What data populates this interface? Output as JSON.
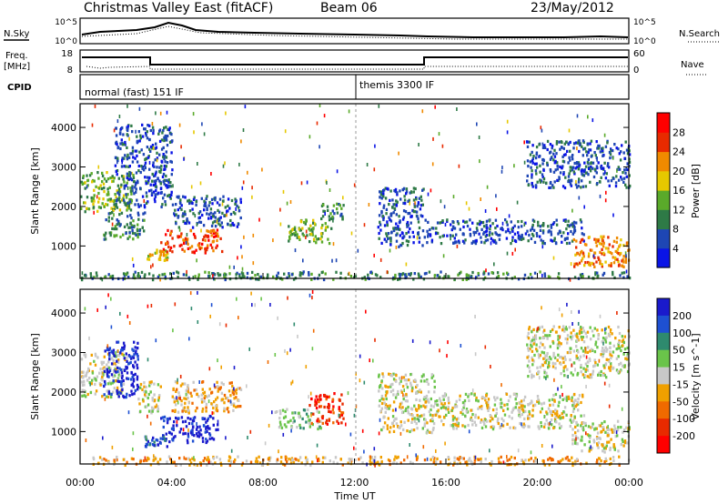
{
  "header": {
    "title": "Christmas Valley East (fitACF)",
    "beam": "Beam 06",
    "date": "23/May/2012"
  },
  "noise_panel": {
    "left_label": "N.Sky",
    "left_ticks": [
      "10^5",
      "10^0"
    ],
    "right_ticks": [
      "10^5",
      "10^0"
    ],
    "right_label": "N.Search"
  },
  "freq_panel": {
    "left_label_top": "Freq.",
    "left_label_bottom": "[MHz]",
    "left_ticks": [
      "18",
      "8"
    ],
    "right_ticks": [
      "60",
      "0"
    ],
    "right_label": "Nave"
  },
  "cpid_panel": {
    "label": "CPID",
    "segments": [
      "normal (fast) 151 IF",
      "themis 3300 IF"
    ]
  },
  "chart_data": [
    {
      "type": "heatmap",
      "name": "power",
      "ylabel": "Slant Range [km]",
      "yticks": [
        "1000",
        "2000",
        "3000",
        "4000"
      ],
      "ylim": [
        180,
        4600
      ],
      "xlim": [
        0,
        24
      ],
      "colorbar": {
        "label": "Power [dB]",
        "ticks": [
          "4",
          "8",
          "12",
          "16",
          "20",
          "24",
          "28"
        ],
        "colors": [
          "#0a14e6",
          "#1e46b4",
          "#2e7a46",
          "#5aaa2a",
          "#e6c800",
          "#f08a00",
          "#e82a00",
          "#ff0000"
        ]
      },
      "regions": [
        {
          "t0": 0.0,
          "t1": 2.3,
          "r0": 1900,
          "r1": 2900,
          "level": 3
        },
        {
          "t0": 1.0,
          "t1": 2.8,
          "r0": 1200,
          "r1": 1900,
          "level": 2
        },
        {
          "t0": 1.5,
          "t1": 4.0,
          "r0": 2000,
          "r1": 4100,
          "level": 1
        },
        {
          "t0": 2.8,
          "t1": 3.8,
          "r0": 650,
          "r1": 950,
          "level": 4
        },
        {
          "t0": 3.5,
          "t1": 6.2,
          "r0": 850,
          "r1": 1450,
          "level": 6
        },
        {
          "t0": 4.0,
          "t1": 7.0,
          "r0": 1500,
          "r1": 2300,
          "level": 1
        },
        {
          "t0": 9.0,
          "t1": 11.0,
          "r0": 1100,
          "r1": 1700,
          "level": 3
        },
        {
          "t0": 10.5,
          "t1": 11.5,
          "r0": 1700,
          "r1": 2100,
          "level": 2
        },
        {
          "t0": 13.0,
          "t1": 15.0,
          "r0": 1000,
          "r1": 2500,
          "level": 1
        },
        {
          "t0": 15.0,
          "t1": 22.0,
          "r0": 1100,
          "r1": 1700,
          "level": 1
        },
        {
          "t0": 19.5,
          "t1": 24.0,
          "r0": 2500,
          "r1": 3700,
          "level": 1
        },
        {
          "t0": 21.5,
          "t1": 24.0,
          "r0": 500,
          "r1": 1300,
          "level": 5
        },
        {
          "t0": 0.0,
          "t1": 24.0,
          "r0": 180,
          "r1": 380,
          "level": 2
        }
      ]
    },
    {
      "type": "heatmap",
      "name": "velocity",
      "ylabel": "Slant Range [km]",
      "yticks": [
        "1000",
        "2000",
        "3000",
        "4000"
      ],
      "ylim": [
        180,
        4600
      ],
      "xlim": [
        0,
        24
      ],
      "xticks": [
        "00:00",
        "04:00",
        "08:00",
        "12:00",
        "16:00",
        "20:00",
        "00:00"
      ],
      "xlabel": "Time UT",
      "colorbar": {
        "label": "Velocity [m s^-1]",
        "ticks": [
          "200",
          "100",
          "50",
          "15",
          "-15",
          "-50",
          "-100",
          "-200"
        ],
        "colors": [
          "#1a1acc",
          "#1e50d2",
          "#2e8a6e",
          "#6ac44a",
          "#c8c8c8",
          "#f0a000",
          "#f06a00",
          "#e82a00",
          "#ff0000"
        ]
      },
      "regions": [
        {
          "t0": 0.0,
          "t1": 2.0,
          "r0": 1900,
          "r1": 3000,
          "level": 4
        },
        {
          "t0": 1.0,
          "t1": 2.5,
          "r0": 1900,
          "r1": 3300,
          "level": 0
        },
        {
          "t0": 2.5,
          "t1": 3.5,
          "r0": 1500,
          "r1": 2300,
          "level": 4
        },
        {
          "t0": 3.5,
          "t1": 6.0,
          "r0": 750,
          "r1": 1450,
          "level": 0
        },
        {
          "t0": 2.8,
          "t1": 3.8,
          "r0": 650,
          "r1": 950,
          "level": 1
        },
        {
          "t0": 4.0,
          "t1": 7.0,
          "r0": 1500,
          "r1": 2300,
          "level": 5
        },
        {
          "t0": 8.5,
          "t1": 10.5,
          "r0": 1100,
          "r1": 1600,
          "level": 3
        },
        {
          "t0": 10.0,
          "t1": 11.5,
          "r0": 1200,
          "r1": 2000,
          "level": 7
        },
        {
          "t0": 13.0,
          "t1": 15.5,
          "r0": 1000,
          "r1": 2500,
          "level": 4
        },
        {
          "t0": 15.5,
          "t1": 22.0,
          "r0": 1100,
          "r1": 2000,
          "level": 4
        },
        {
          "t0": 19.5,
          "t1": 24.0,
          "r0": 2400,
          "r1": 3700,
          "level": 4
        },
        {
          "t0": 21.5,
          "t1": 24.0,
          "r0": 500,
          "r1": 1300,
          "level": 4
        },
        {
          "t0": 0.0,
          "t1": 24.0,
          "r0": 180,
          "r1": 400,
          "level": 5
        }
      ]
    }
  ]
}
